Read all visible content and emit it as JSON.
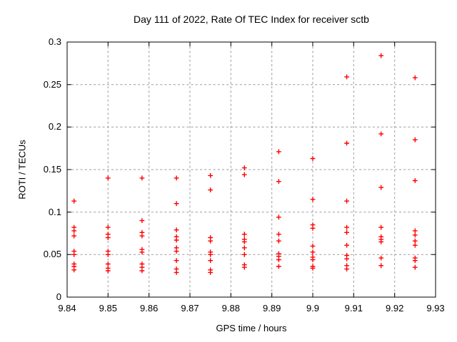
{
  "chart_data": {
    "type": "scatter",
    "title": "Day 111 of 2022, Rate Of TEC Index for receiver sctb",
    "xlabel": "GPS time / hours",
    "ylabel": "ROTI / TECUs",
    "xlim": [
      9.84,
      9.93
    ],
    "ylim": [
      0,
      0.3
    ],
    "xticks": [
      9.84,
      9.85,
      9.86,
      9.87,
      9.88,
      9.89,
      9.9,
      9.91,
      9.92,
      9.93
    ],
    "xtick_labels": [
      "9.84",
      "9.85",
      "9.86",
      "9.87",
      "9.88",
      "9.89",
      "9.9",
      "9.91",
      "9.92",
      "9.93"
    ],
    "yticks": [
      0,
      0.05,
      0.1,
      0.15,
      0.2,
      0.25,
      0.3
    ],
    "ytick_labels": [
      "0",
      "0.05",
      "0.1",
      "0.15",
      "0.2",
      "0.25",
      "0.3"
    ],
    "grid": true,
    "grid_style": "dashed",
    "grid_color": "#9a9a9a",
    "legend": "none",
    "marker": "plus",
    "marker_color": "#ff0000",
    "axis_color": "#000000",
    "series": [
      {
        "name": "ROTI",
        "columns": [
          {
            "t": 9.8417,
            "v": [
              0.113,
              0.082,
              0.078,
              0.072,
              0.054,
              0.05,
              0.039,
              0.036,
              0.032
            ]
          },
          {
            "t": 9.85,
            "v": [
              0.14,
              0.082,
              0.074,
              0.07,
              0.054,
              0.05,
              0.039,
              0.034,
              0.031
            ]
          },
          {
            "t": 9.8583,
            "v": [
              0.14,
              0.09,
              0.076,
              0.072,
              0.056,
              0.053,
              0.039,
              0.035,
              0.031
            ]
          },
          {
            "t": 9.8667,
            "v": [
              0.14,
              0.11,
              0.079,
              0.071,
              0.067,
              0.058,
              0.054,
              0.043,
              0.033,
              0.029
            ]
          },
          {
            "t": 9.875,
            "v": [
              0.143,
              0.126,
              0.07,
              0.066,
              0.053,
              0.05,
              0.043,
              0.032,
              0.029
            ]
          },
          {
            "t": 9.8833,
            "v": [
              0.152,
              0.144,
              0.074,
              0.068,
              0.065,
              0.058,
              0.05,
              0.038,
              0.035
            ]
          },
          {
            "t": 9.8917,
            "v": [
              0.171,
              0.136,
              0.094,
              0.074,
              0.066,
              0.051,
              0.048,
              0.044,
              0.036
            ]
          },
          {
            "t": 9.9,
            "v": [
              0.163,
              0.115,
              0.085,
              0.081,
              0.06,
              0.053,
              0.047,
              0.044,
              0.036,
              0.034
            ]
          },
          {
            "t": 9.9083,
            "v": [
              0.259,
              0.181,
              0.113,
              0.082,
              0.076,
              0.061,
              0.049,
              0.045,
              0.037,
              0.033
            ]
          },
          {
            "t": 9.9167,
            "v": [
              0.284,
              0.192,
              0.129,
              0.082,
              0.071,
              0.068,
              0.065,
              0.046,
              0.037
            ]
          },
          {
            "t": 9.925,
            "v": [
              0.258,
              0.185,
              0.137,
              0.078,
              0.073,
              0.066,
              0.061,
              0.046,
              0.043,
              0.035
            ]
          }
        ]
      }
    ]
  }
}
